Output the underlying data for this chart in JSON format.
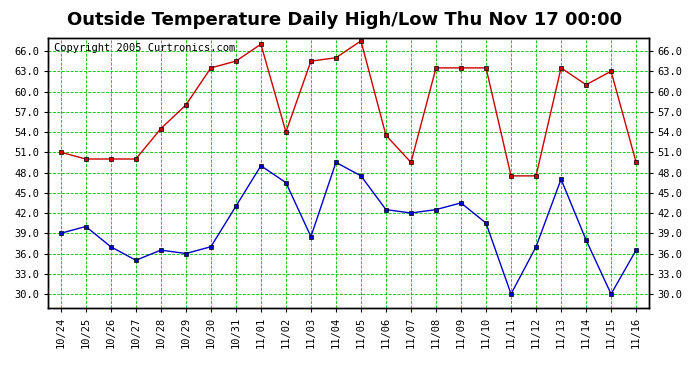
{
  "title": "Outside Temperature Daily High/Low Thu Nov 17 00:00",
  "copyright": "Copyright 2005 Curtronics.com",
  "labels": [
    "10/24",
    "10/25",
    "10/26",
    "10/27",
    "10/28",
    "10/29",
    "10/30",
    "10/31",
    "11/01",
    "11/02",
    "11/03",
    "11/04",
    "11/05",
    "11/06",
    "11/07",
    "11/08",
    "11/09",
    "11/10",
    "11/11",
    "11/12",
    "11/13",
    "11/14",
    "11/15",
    "11/16"
  ],
  "high": [
    51.0,
    50.0,
    50.0,
    50.0,
    54.5,
    58.0,
    63.5,
    64.5,
    67.0,
    54.0,
    64.5,
    65.0,
    67.5,
    53.5,
    49.5,
    63.5,
    63.5,
    63.5,
    47.5,
    47.5,
    63.5,
    61.0,
    63.0,
    49.5
  ],
  "low": [
    39.0,
    40.0,
    37.0,
    35.0,
    36.5,
    36.0,
    37.0,
    43.0,
    49.0,
    46.5,
    38.5,
    49.5,
    47.5,
    42.5,
    42.0,
    42.5,
    43.5,
    40.5,
    30.0,
    37.0,
    47.0,
    38.0,
    30.0,
    36.5
  ],
  "high_color": "#cc0000",
  "low_color": "#0000cc",
  "bg_color": "#ffffff",
  "plot_bg_color": "#ffffff",
  "grid_color": "#00bb00",
  "border_color": "#000000",
  "ylim_min": 28.0,
  "ylim_max": 68.0,
  "yticks": [
    30.0,
    33.0,
    36.0,
    39.0,
    42.0,
    45.0,
    48.0,
    51.0,
    54.0,
    57.0,
    60.0,
    63.0,
    66.0
  ],
  "title_fontsize": 13,
  "tick_fontsize": 7.5,
  "copyright_fontsize": 7.5
}
